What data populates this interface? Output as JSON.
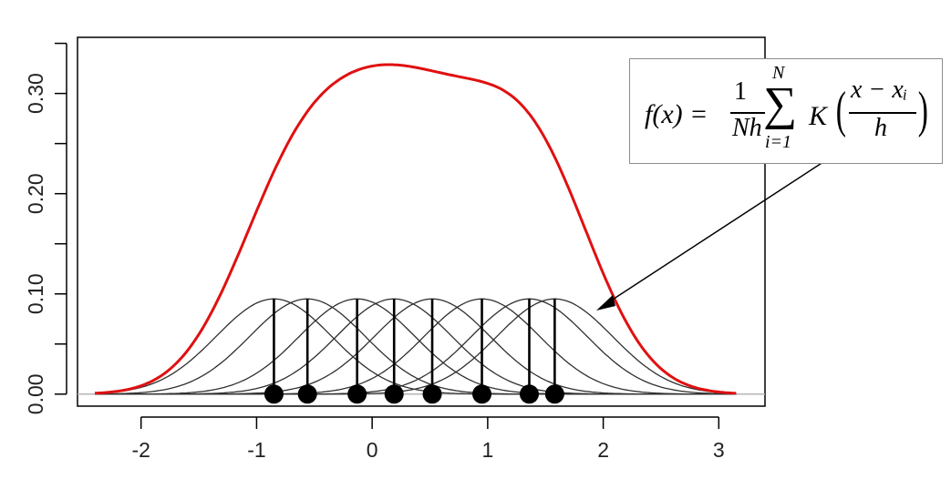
{
  "chart_data": {
    "type": "line",
    "title": "",
    "xlabel": "",
    "ylabel": "",
    "xlim": [
      -2.55,
      3.4
    ],
    "ylim": [
      -0.012,
      0.356
    ],
    "x_ticks": [
      "-2",
      "-1",
      "0",
      "1",
      "2",
      "3"
    ],
    "y_ticks": [
      "0.00",
      "0.10",
      "0.20",
      "0.30"
    ],
    "bandwidth": 0.5,
    "kernel": "gaussian",
    "samples": [
      -0.85,
      -0.56,
      -0.13,
      0.19,
      0.52,
      0.95,
      1.36,
      1.58
    ],
    "kernel_peak": 0.095,
    "series": [
      {
        "role": "density",
        "color": "#e01010"
      },
      {
        "role": "kernels",
        "color": "#303030"
      }
    ],
    "grid": false
  },
  "formula": {
    "lhs": "f(x) = ",
    "frac_num": "1",
    "frac_den": "Nh",
    "sum_symbol": "∑",
    "sum_upper": "N",
    "sum_lower": "i=1",
    "kernel": "K",
    "paren_left": "(",
    "paren_right": ")",
    "inner_num": "x − xᵢ",
    "inner_den": "h"
  }
}
